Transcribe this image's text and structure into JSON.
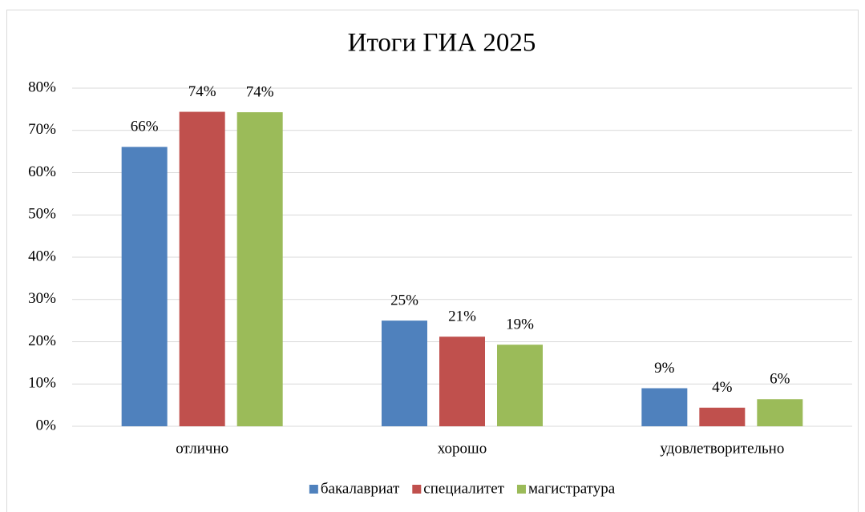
{
  "chart_data": {
    "type": "bar",
    "title": "Итоги ГИА 2025",
    "categories": [
      "отлично",
      "хорошо",
      "удовлетворительно"
    ],
    "series": [
      {
        "name": "бакалавриат",
        "color": "#4f81bd",
        "values": [
          66.1,
          25,
          9
        ],
        "value_labels": [
          "66%",
          "25%",
          "9%"
        ]
      },
      {
        "name": "специалитет",
        "color": "#c0504d",
        "values": [
          74.4,
          21.2,
          4.4
        ],
        "value_labels": [
          "74%",
          "21%",
          "4%"
        ]
      },
      {
        "name": "магистратура",
        "color": "#9bbb59",
        "values": [
          74.3,
          19.3,
          6.4
        ],
        "value_labels": [
          "74%",
          "19%",
          "6%"
        ]
      }
    ],
    "ylim": [
      0,
      80
    ],
    "yticks": [
      {
        "value": 0,
        "label": "0%"
      },
      {
        "value": 10,
        "label": "10%"
      },
      {
        "value": 20,
        "label": "20%"
      },
      {
        "value": 30,
        "label": "30%"
      },
      {
        "value": 40,
        "label": "40%"
      },
      {
        "value": 50,
        "label": "50%"
      },
      {
        "value": 60,
        "label": "60%"
      },
      {
        "value": 70,
        "label": "70%"
      },
      {
        "value": 80,
        "label": "80%"
      }
    ],
    "grid": true,
    "legend": "bottom"
  }
}
